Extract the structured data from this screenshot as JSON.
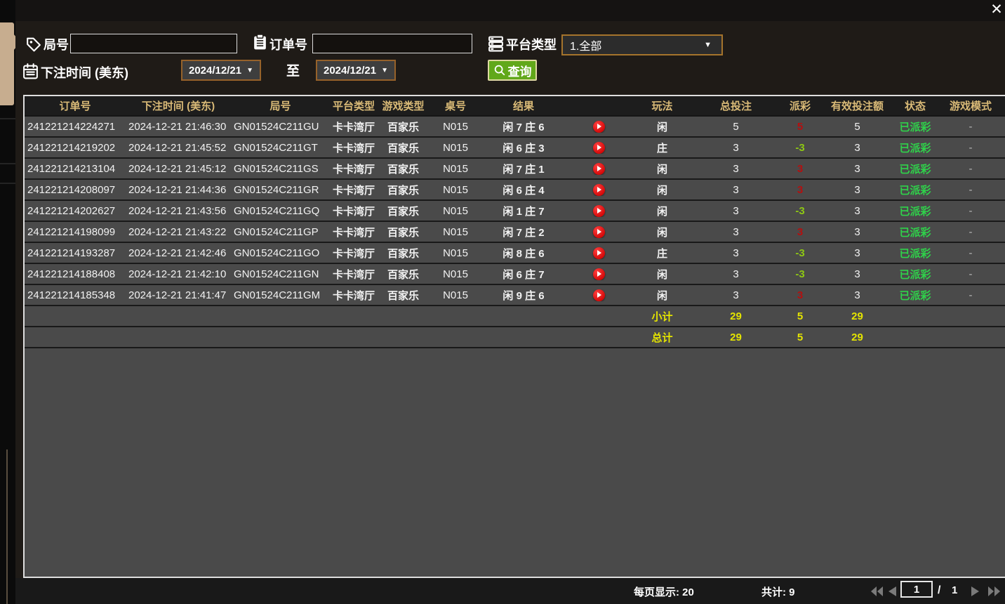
{
  "window": {
    "close_label": "✕"
  },
  "filters": {
    "round": {
      "label": "局号",
      "value": ""
    },
    "order": {
      "label": "订单号",
      "value": ""
    },
    "platform": {
      "label": "平台类型",
      "value": "1.全部",
      "arrow": "▼"
    },
    "bet_time": {
      "label": "下注时间 (美东)",
      "from": "2024/12/21",
      "to_separator": "至",
      "to": "2024/12/21",
      "arrow": "▼"
    },
    "query_label": "查询"
  },
  "table": {
    "headers": [
      "订单号",
      "下注时间 (美东)",
      "局号",
      "平台类型",
      "游戏类型",
      "桌号",
      "结果",
      "",
      "玩法",
      "总投注",
      "派彩",
      "有效投注额",
      "状态",
      "游戏模式"
    ],
    "rows": [
      {
        "order_no": "241221214224271",
        "bet_time": "2024-12-21 21:46:30",
        "round_no": "GN01524C211GU",
        "platform": "卡卡湾厅",
        "game_type": "百家乐",
        "table_no": "N015",
        "result": "闲 7 庄 6",
        "bet_option": "闲",
        "total_bet": "5",
        "payout": "5",
        "payout_color": "red",
        "valid_bet": "5",
        "status": "已派彩",
        "game_mode": "-"
      },
      {
        "order_no": "241221214219202",
        "bet_time": "2024-12-21 21:45:52",
        "round_no": "GN01524C211GT",
        "platform": "卡卡湾厅",
        "game_type": "百家乐",
        "table_no": "N015",
        "result": "闲 6 庄 3",
        "bet_option": "庄",
        "total_bet": "3",
        "payout": "-3",
        "payout_color": "green",
        "valid_bet": "3",
        "status": "已派彩",
        "game_mode": "-"
      },
      {
        "order_no": "241221214213104",
        "bet_time": "2024-12-21 21:45:12",
        "round_no": "GN01524C211GS",
        "platform": "卡卡湾厅",
        "game_type": "百家乐",
        "table_no": "N015",
        "result": "闲 7 庄 1",
        "bet_option": "闲",
        "total_bet": "3",
        "payout": "3",
        "payout_color": "red",
        "valid_bet": "3",
        "status": "已派彩",
        "game_mode": "-"
      },
      {
        "order_no": "241221214208097",
        "bet_time": "2024-12-21 21:44:36",
        "round_no": "GN01524C211GR",
        "platform": "卡卡湾厅",
        "game_type": "百家乐",
        "table_no": "N015",
        "result": "闲 6 庄 4",
        "bet_option": "闲",
        "total_bet": "3",
        "payout": "3",
        "payout_color": "red",
        "valid_bet": "3",
        "status": "已派彩",
        "game_mode": "-"
      },
      {
        "order_no": "241221214202627",
        "bet_time": "2024-12-21 21:43:56",
        "round_no": "GN01524C211GQ",
        "platform": "卡卡湾厅",
        "game_type": "百家乐",
        "table_no": "N015",
        "result": "闲 1 庄 7",
        "bet_option": "闲",
        "total_bet": "3",
        "payout": "-3",
        "payout_color": "green",
        "valid_bet": "3",
        "status": "已派彩",
        "game_mode": "-"
      },
      {
        "order_no": "241221214198099",
        "bet_time": "2024-12-21 21:43:22",
        "round_no": "GN01524C211GP",
        "platform": "卡卡湾厅",
        "game_type": "百家乐",
        "table_no": "N015",
        "result": "闲 7 庄 2",
        "bet_option": "闲",
        "total_bet": "3",
        "payout": "3",
        "payout_color": "red",
        "valid_bet": "3",
        "status": "已派彩",
        "game_mode": "-"
      },
      {
        "order_no": "241221214193287",
        "bet_time": "2024-12-21 21:42:46",
        "round_no": "GN01524C211GO",
        "platform": "卡卡湾厅",
        "game_type": "百家乐",
        "table_no": "N015",
        "result": "闲 8 庄 6",
        "bet_option": "庄",
        "total_bet": "3",
        "payout": "-3",
        "payout_color": "green",
        "valid_bet": "3",
        "status": "已派彩",
        "game_mode": "-"
      },
      {
        "order_no": "241221214188408",
        "bet_time": "2024-12-21 21:42:10",
        "round_no": "GN01524C211GN",
        "platform": "卡卡湾厅",
        "game_type": "百家乐",
        "table_no": "N015",
        "result": "闲 6 庄 7",
        "bet_option": "闲",
        "total_bet": "3",
        "payout": "-3",
        "payout_color": "green",
        "valid_bet": "3",
        "status": "已派彩",
        "game_mode": "-"
      },
      {
        "order_no": "241221214185348",
        "bet_time": "2024-12-21 21:41:47",
        "round_no": "GN01524C211GM",
        "platform": "卡卡湾厅",
        "game_type": "百家乐",
        "table_no": "N015",
        "result": "闲 9 庄 6",
        "bet_option": "闲",
        "total_bet": "3",
        "payout": "3",
        "payout_color": "red",
        "valid_bet": "3",
        "status": "已派彩",
        "game_mode": "-"
      }
    ],
    "subtotal": {
      "label": "小计",
      "total_bet": "29",
      "payout": "5",
      "valid_bet": "29"
    },
    "grand_total": {
      "label": "总计",
      "total_bet": "29",
      "payout": "5",
      "valid_bet": "29"
    }
  },
  "footer": {
    "per_page_label": "每页显示:",
    "per_page_value": "20",
    "count_label": "共计:",
    "count_value": "9",
    "page_current": "1",
    "page_separator": "/",
    "page_total": "1"
  },
  "colors": {
    "payout_positive": "#b50f0f",
    "payout_negative": "#8ec813",
    "status_paid": "#2fd24a",
    "totals_yellow": "#e4e400",
    "header_gold": "#d9ba77",
    "query_button_green": "#61a81a",
    "side_tab_beige": "#c7ad8f"
  }
}
